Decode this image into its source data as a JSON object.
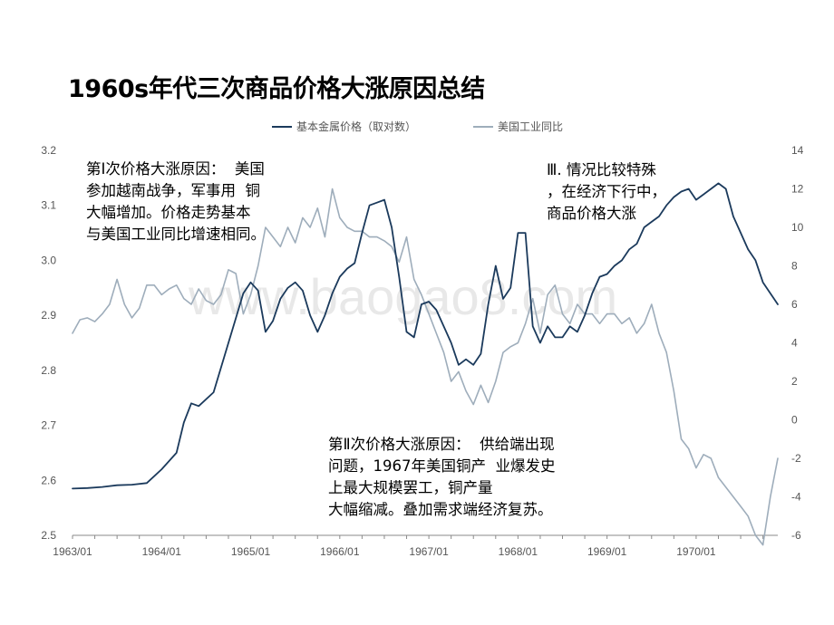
{
  "slide": {
    "title": "1960s年代三次商品价格大涨原因总结",
    "watermark": "www.baogao8.com"
  },
  "annotations": [
    {
      "id": "reason-1",
      "text": "第Ⅰ次价格大涨原因：  美国\n参加越南战争，军事用  铜\n大幅增加。价格走势基本\n与美国工业同比增速相同。"
    },
    {
      "id": "reason-2",
      "text": "第Ⅱ次价格大涨原因：  供给端出现\n问题，1967年美国铜产  业爆发史\n上最大规模罢工，铜产量\n大幅缩减。叠加需求端经济复苏。"
    },
    {
      "id": "reason-3",
      "text": "Ⅲ. 情况比较特殊\n，在经济下行中，\n商品价格大涨"
    }
  ],
  "chart_data": {
    "type": "line",
    "legend_position": "top-center",
    "grid": false,
    "x": {
      "start": "1963/01",
      "end": "1970/12",
      "tick_labels": [
        "1963/01",
        "1964/01",
        "1965/01",
        "1966/01",
        "1967/01",
        "1968/01",
        "1969/01",
        "1970/01"
      ]
    },
    "y_left": {
      "min": 2.5,
      "max": 3.2,
      "ticks": [
        "2.5",
        "2.6",
        "2.7",
        "2.8",
        "2.9",
        "3.0",
        "3.1",
        "3.2"
      ]
    },
    "y_right": {
      "min": -6,
      "max": 14,
      "ticks": [
        "-6",
        "-4",
        "-2",
        "0",
        "2",
        "4",
        "6",
        "8",
        "10",
        "12",
        "14"
      ]
    },
    "series": [
      {
        "name": "基本金属价格（取对数）",
        "axis": "left",
        "color": "#1b3a5c",
        "points": [
          [
            "1963/01",
            2.585
          ],
          [
            "1963/03",
            2.586
          ],
          [
            "1963/05",
            2.588
          ],
          [
            "1963/07",
            2.591
          ],
          [
            "1963/09",
            2.592
          ],
          [
            "1963/11",
            2.595
          ],
          [
            "1964/01",
            2.62
          ],
          [
            "1964/03",
            2.65
          ],
          [
            "1964/04",
            2.705
          ],
          [
            "1964/05",
            2.74
          ],
          [
            "1964/06",
            2.735
          ],
          [
            "1964/08",
            2.76
          ],
          [
            "1964/10",
            2.85
          ],
          [
            "1964/12",
            2.94
          ],
          [
            "1965/01",
            2.96
          ],
          [
            "1965/02",
            2.945
          ],
          [
            "1965/03",
            2.87
          ],
          [
            "1965/04",
            2.89
          ],
          [
            "1965/05",
            2.93
          ],
          [
            "1965/06",
            2.95
          ],
          [
            "1965/07",
            2.96
          ],
          [
            "1965/08",
            2.945
          ],
          [
            "1965/09",
            2.9
          ],
          [
            "1965/10",
            2.87
          ],
          [
            "1965/11",
            2.9
          ],
          [
            "1965/12",
            2.94
          ],
          [
            "1966/01",
            2.97
          ],
          [
            "1966/02",
            2.985
          ],
          [
            "1966/03",
            2.995
          ],
          [
            "1966/04",
            3.05
          ],
          [
            "1966/05",
            3.1
          ],
          [
            "1966/06",
            3.105
          ],
          [
            "1966/07",
            3.11
          ],
          [
            "1966/08",
            3.06
          ],
          [
            "1966/09",
            2.97
          ],
          [
            "1966/10",
            2.87
          ],
          [
            "1966/11",
            2.86
          ],
          [
            "1966/12",
            2.92
          ],
          [
            "1967/01",
            2.925
          ],
          [
            "1967/02",
            2.91
          ],
          [
            "1967/03",
            2.88
          ],
          [
            "1967/04",
            2.85
          ],
          [
            "1967/05",
            2.81
          ],
          [
            "1967/06",
            2.82
          ],
          [
            "1967/07",
            2.81
          ],
          [
            "1967/08",
            2.83
          ],
          [
            "1967/09",
            2.92
          ],
          [
            "1967/10",
            2.99
          ],
          [
            "1967/11",
            2.93
          ],
          [
            "1967/12",
            2.95
          ],
          [
            "1968/01",
            3.05
          ],
          [
            "1968/02",
            3.05
          ],
          [
            "1968/03",
            2.88
          ],
          [
            "1968/04",
            2.85
          ],
          [
            "1968/05",
            2.88
          ],
          [
            "1968/06",
            2.86
          ],
          [
            "1968/07",
            2.86
          ],
          [
            "1968/08",
            2.88
          ],
          [
            "1968/09",
            2.87
          ],
          [
            "1968/10",
            2.9
          ],
          [
            "1968/11",
            2.94
          ],
          [
            "1968/12",
            2.97
          ],
          [
            "1969/01",
            2.975
          ],
          [
            "1969/02",
            2.99
          ],
          [
            "1969/03",
            3.0
          ],
          [
            "1969/04",
            3.02
          ],
          [
            "1969/05",
            3.03
          ],
          [
            "1969/06",
            3.06
          ],
          [
            "1969/07",
            3.07
          ],
          [
            "1969/08",
            3.08
          ],
          [
            "1969/09",
            3.1
          ],
          [
            "1969/10",
            3.115
          ],
          [
            "1969/11",
            3.125
          ],
          [
            "1969/12",
            3.13
          ],
          [
            "1970/01",
            3.11
          ],
          [
            "1970/02",
            3.12
          ],
          [
            "1970/03",
            3.13
          ],
          [
            "1970/04",
            3.14
          ],
          [
            "1970/05",
            3.13
          ],
          [
            "1970/06",
            3.08
          ],
          [
            "1970/07",
            3.05
          ],
          [
            "1970/08",
            3.02
          ],
          [
            "1970/09",
            3.0
          ],
          [
            "1970/10",
            2.96
          ],
          [
            "1970/11",
            2.94
          ],
          [
            "1970/12",
            2.92
          ]
        ]
      },
      {
        "name": "美国工业同比",
        "axis": "right",
        "color": "#9eadbb",
        "points": [
          [
            "1963/01",
            4.5
          ],
          [
            "1963/02",
            5.2
          ],
          [
            "1963/03",
            5.3
          ],
          [
            "1963/04",
            5.1
          ],
          [
            "1963/05",
            5.5
          ],
          [
            "1963/06",
            6.0
          ],
          [
            "1963/07",
            7.3
          ],
          [
            "1963/08",
            6.0
          ],
          [
            "1963/09",
            5.3
          ],
          [
            "1963/10",
            5.8
          ],
          [
            "1963/11",
            7.0
          ],
          [
            "1963/12",
            7.0
          ],
          [
            "1964/01",
            6.5
          ],
          [
            "1964/02",
            6.8
          ],
          [
            "1964/03",
            7.0
          ],
          [
            "1964/04",
            6.3
          ],
          [
            "1964/05",
            6.0
          ],
          [
            "1964/06",
            6.8
          ],
          [
            "1964/07",
            6.2
          ],
          [
            "1964/08",
            6.0
          ],
          [
            "1964/09",
            6.5
          ],
          [
            "1964/10",
            7.8
          ],
          [
            "1964/11",
            7.6
          ],
          [
            "1964/12",
            5.5
          ],
          [
            "1965/01",
            6.5
          ],
          [
            "1965/02",
            8.0
          ],
          [
            "1965/03",
            10.0
          ],
          [
            "1965/04",
            9.5
          ],
          [
            "1965/05",
            9.0
          ],
          [
            "1965/06",
            10.0
          ],
          [
            "1965/07",
            9.2
          ],
          [
            "1965/08",
            10.5
          ],
          [
            "1965/09",
            10.0
          ],
          [
            "1965/10",
            11.0
          ],
          [
            "1965/11",
            9.5
          ],
          [
            "1965/12",
            12.0
          ],
          [
            "1966/01",
            10.5
          ],
          [
            "1966/02",
            10.0
          ],
          [
            "1966/03",
            9.8
          ],
          [
            "1966/04",
            9.8
          ],
          [
            "1966/05",
            9.5
          ],
          [
            "1966/06",
            9.5
          ],
          [
            "1966/07",
            9.3
          ],
          [
            "1966/08",
            9.0
          ],
          [
            "1966/09",
            8.2
          ],
          [
            "1966/10",
            9.5
          ],
          [
            "1966/11",
            7.3
          ],
          [
            "1966/12",
            6.5
          ],
          [
            "1967/01",
            5.5
          ],
          [
            "1967/02",
            4.5
          ],
          [
            "1967/03",
            3.5
          ],
          [
            "1967/04",
            2.0
          ],
          [
            "1967/05",
            2.5
          ],
          [
            "1967/06",
            1.5
          ],
          [
            "1967/07",
            0.8
          ],
          [
            "1967/08",
            1.8
          ],
          [
            "1967/09",
            0.9
          ],
          [
            "1967/10",
            2.0
          ],
          [
            "1967/11",
            3.5
          ],
          [
            "1967/12",
            3.8
          ],
          [
            "1968/01",
            4.0
          ],
          [
            "1968/02",
            5.0
          ],
          [
            "1968/03",
            6.3
          ],
          [
            "1968/04",
            4.5
          ],
          [
            "1968/05",
            6.5
          ],
          [
            "1968/06",
            7.0
          ],
          [
            "1968/07",
            5.5
          ],
          [
            "1968/08",
            5.0
          ],
          [
            "1968/09",
            6.0
          ],
          [
            "1968/10",
            5.5
          ],
          [
            "1968/11",
            5.5
          ],
          [
            "1968/12",
            5.0
          ],
          [
            "1969/01",
            5.5
          ],
          [
            "1969/02",
            5.5
          ],
          [
            "1969/03",
            5.0
          ],
          [
            "1969/04",
            5.3
          ],
          [
            "1969/05",
            4.5
          ],
          [
            "1969/06",
            5.0
          ],
          [
            "1969/07",
            6.0
          ],
          [
            "1969/08",
            4.5
          ],
          [
            "1969/09",
            3.5
          ],
          [
            "1969/10",
            1.5
          ],
          [
            "1969/11",
            -1.0
          ],
          [
            "1969/12",
            -1.5
          ],
          [
            "1970/01",
            -2.5
          ],
          [
            "1970/02",
            -1.8
          ],
          [
            "1970/03",
            -2.0
          ],
          [
            "1970/04",
            -3.0
          ],
          [
            "1970/05",
            -3.5
          ],
          [
            "1970/06",
            -4.0
          ],
          [
            "1970/07",
            -4.5
          ],
          [
            "1970/08",
            -5.0
          ],
          [
            "1970/09",
            -6.0
          ],
          [
            "1970/10",
            -6.5
          ],
          [
            "1970/11",
            -4.0
          ],
          [
            "1970/12",
            -2.0
          ]
        ]
      }
    ]
  }
}
